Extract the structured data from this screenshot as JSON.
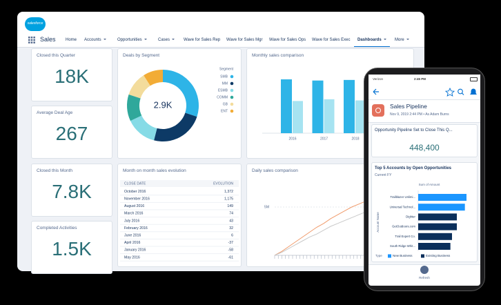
{
  "app": {
    "logo": "salesforce",
    "name": "Sales",
    "nav": [
      "Home",
      "Accounts",
      "Opportunities",
      "Cases",
      "Wave for Sales Rep",
      "Wave for Sales Mgr",
      "Wave for Sales Ops",
      "Wave for Sales Exec",
      "Dashboards",
      "More"
    ],
    "active_nav": 8
  },
  "metrics": [
    {
      "title": "Closed this Quarter",
      "value": "18K"
    },
    {
      "title": "Average Deal Age",
      "value": "267"
    },
    {
      "title": "Closed this Month",
      "value": "7.8K"
    },
    {
      "title": "Completed Activities",
      "value": "1.5K"
    }
  ],
  "deals_by_segment": {
    "type": "pie",
    "title": "Deals by Segment",
    "center_label": "2.9K",
    "legend_title": "Segment",
    "categories": [
      "SMB",
      "MM",
      "ESMB",
      "COMM",
      "GB",
      "ENT"
    ],
    "values": [
      30,
      24,
      14,
      12,
      11,
      9
    ],
    "colors": [
      "#2eb4e7",
      "#0d3a66",
      "#86dbe6",
      "#2fa89b",
      "#f3dc9c",
      "#f2ac36"
    ]
  },
  "monthly_sales": {
    "type": "bar",
    "title": "Monthly sales comparison",
    "categories": [
      "2016",
      "2017",
      "2018"
    ],
    "series": [
      {
        "color": "#2eb4e7",
        "values": [
          92,
          90,
          91
        ]
      },
      {
        "color": "#a6e3f1",
        "values": [
          55,
          58,
          56
        ]
      }
    ]
  },
  "sales_table": {
    "title": "Month on month sales evolution",
    "columns": [
      "CLOSE DATE",
      "EVOLUTION"
    ],
    "rows": [
      [
        "October 2016",
        "1,372"
      ],
      [
        "November 2016",
        "1,175"
      ],
      [
        "August 2016",
        "149"
      ],
      [
        "March 2016",
        "74"
      ],
      [
        "July 2016",
        "43"
      ],
      [
        "February 2016",
        "32"
      ],
      [
        "June 2016",
        "6"
      ],
      [
        "April 2016",
        "-37"
      ],
      [
        "January 2016",
        "-58"
      ],
      [
        "May 2016",
        "-61"
      ]
    ]
  },
  "daily_sales": {
    "type": "line",
    "title": "Daily sales comparison",
    "ylim": [
      0,
      6000000
    ],
    "yticks": [
      {
        "value": 5000000,
        "label": "5M"
      }
    ],
    "series": [
      {
        "color": "#f09a6a",
        "values": [
          0,
          400000,
          900000,
          1400000,
          1900000,
          2400000,
          2900000,
          3300000,
          3800000,
          4200000,
          4600000,
          5000000,
          5300000,
          5600000
        ]
      },
      {
        "color": "#c9c9c9",
        "values": [
          0,
          300000,
          700000,
          1100000,
          1500000,
          1900000,
          2200000,
          2600000,
          3000000,
          3300000,
          3600000,
          3900000,
          4200000,
          4500000
        ]
      }
    ]
  },
  "phone": {
    "carrier": "Verizon",
    "time": "2:45 PM",
    "title": "Sales Pipeline",
    "subtitle": "Nov 9, 2019 2:44 PM • As Adam Burns",
    "pipeline_title": "Opportunity Pipeline Set to Close This Q...",
    "pipeline_value": "448,400",
    "accounts_chart": {
      "type": "bar",
      "title": "Top 5 Accounts by Open Opportunities",
      "subtitle": "Current FY",
      "x_label": "Sum of Amount",
      "y_label": "Account Name",
      "legend_title": "Type",
      "categories": [
        "Trailblazer Unlimi...",
        "Universal Technol...",
        "Dighter",
        "GetOutdoors.com",
        "Trail Expert Co.",
        "South Ridge Whit..."
      ],
      "series": [
        {
          "name": "New Business",
          "color": "#1b96ff",
          "values": [
            30,
            29,
            null,
            null,
            null,
            null
          ]
        },
        {
          "name": "Existing Business",
          "color": "#0b2f5b",
          "values": [
            null,
            null,
            24,
            24,
            21,
            20
          ]
        }
      ]
    },
    "button": "Refresh"
  }
}
